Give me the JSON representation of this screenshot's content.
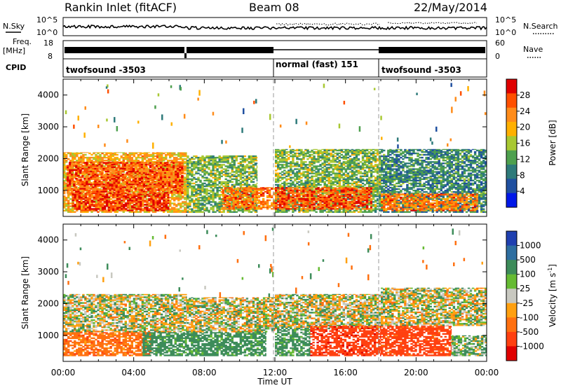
{
  "header": {
    "station": "Rankin Inlet (fitACF)",
    "beam": "Beam 08",
    "date": "22/May/2014"
  },
  "summary_panels": {
    "nsky": {
      "label": "N.Sky",
      "ticks": [
        "10^5",
        "10^0"
      ],
      "right_label": "N.Search",
      "right_ticks": [
        "10^5",
        "10^0"
      ]
    },
    "freq": {
      "label": "Freq.",
      "unit": "[MHz]",
      "ticks": [
        "18",
        "8"
      ],
      "right_label": "Nave",
      "right_ticks": [
        "60",
        "0"
      ]
    },
    "cpid": {
      "label": "CPID",
      "segments": [
        {
          "text": "twofsound -3503",
          "start": 0,
          "end": 12
        },
        {
          "text": "normal (fast) 151",
          "start": 12,
          "end": 18
        },
        {
          "text": "twofsound -3503",
          "start": 18,
          "end": 24
        }
      ]
    }
  },
  "x_axis": {
    "title": "Time UT",
    "tick_labels": [
      "00:00",
      "04:00",
      "08:00",
      "12:00",
      "16:00",
      "20:00",
      "00:00"
    ],
    "range_hours": [
      0,
      24
    ]
  },
  "power_colorbar": {
    "title": "Power [dB]",
    "labels": [
      "28",
      "24",
      "20",
      "16",
      "12",
      "8",
      "4"
    ],
    "colors": [
      "#e00000",
      "#ff5000",
      "#ff8c1a",
      "#ffb000",
      "#a8c832",
      "#4ea04e",
      "#2e7a7a",
      "#2050a0",
      "#0018e8"
    ]
  },
  "velocity_colorbar": {
    "title": "Velocity [m s",
    "title_sup": "-1",
    "title_end": "]",
    "labels": [
      "1000",
      "500",
      "100",
      "25",
      "-25",
      "-100",
      "-500",
      "-1000"
    ],
    "colors": [
      "#2040b0",
      "#2e6ea0",
      "#3d8c5a",
      "#66bb33",
      "#c8c8c0",
      "#ffa010",
      "#ff7010",
      "#ff4010",
      "#e00000"
    ]
  },
  "range_axis": {
    "title": "Slant Range [km]",
    "tick_labels": [
      "1000",
      "2000",
      "3000",
      "4000"
    ]
  },
  "chart_data": {
    "type": "heatmap",
    "x_unit": "hours UT",
    "y_unit": "km",
    "xlim": [
      0,
      24
    ],
    "ylim": [
      180,
      4500
    ],
    "mode_boundaries_hours": [
      12,
      18
    ],
    "power_regions": [
      {
        "t0": 0.0,
        "t1": 7.0,
        "r0": 300,
        "r1": 2200,
        "level_db": 20
      },
      {
        "t0": 0.2,
        "t1": 6.8,
        "r0": 900,
        "r1": 1900,
        "level_db": 26
      },
      {
        "t0": 0.5,
        "t1": 6.0,
        "r0": 350,
        "r1": 900,
        "level_db": 28
      },
      {
        "t0": 7.0,
        "t1": 11.0,
        "r0": 300,
        "r1": 2100,
        "level_db": 14
      },
      {
        "t0": 9.0,
        "t1": 12.0,
        "r0": 400,
        "r1": 1100,
        "level_db": 24
      },
      {
        "t0": 12.0,
        "t1": 18.0,
        "r0": 300,
        "r1": 2300,
        "level_db": 14
      },
      {
        "t0": 12.0,
        "t1": 17.5,
        "r0": 400,
        "r1": 1100,
        "level_db": 26
      },
      {
        "t0": 18.0,
        "t1": 24.0,
        "r0": 300,
        "r1": 2300,
        "level_db": 10
      },
      {
        "t0": 18.0,
        "t1": 23.5,
        "r0": 350,
        "r1": 900,
        "level_db": 24
      }
    ],
    "velocity_regions": [
      {
        "t0": 0.0,
        "t1": 7.0,
        "r0": 1100,
        "r1": 2300,
        "vel": 0
      },
      {
        "t0": 0.0,
        "t1": 5.0,
        "r0": 350,
        "r1": 1100,
        "vel": -200
      },
      {
        "t0": 4.5,
        "t1": 7.0,
        "r0": 350,
        "r1": 1100,
        "vel": 150
      },
      {
        "t0": 7.0,
        "t1": 12.0,
        "r0": 1100,
        "r1": 2200,
        "vel": 0
      },
      {
        "t0": 7.0,
        "t1": 11.5,
        "r0": 350,
        "r1": 1100,
        "vel": 150
      },
      {
        "t0": 12.0,
        "t1": 18.0,
        "r0": 1200,
        "r1": 2300,
        "vel": 0
      },
      {
        "t0": 12.0,
        "t1": 14.0,
        "r0": 350,
        "r1": 1200,
        "vel": 120
      },
      {
        "t0": 14.0,
        "t1": 18.0,
        "r0": 350,
        "r1": 1300,
        "vel": -600
      },
      {
        "t0": 18.0,
        "t1": 24.0,
        "r0": 1300,
        "r1": 2500,
        "vel": 0
      },
      {
        "t0": 18.0,
        "t1": 22.0,
        "r0": 350,
        "r1": 1300,
        "vel": -400
      },
      {
        "t0": 22.0,
        "t1": 24.0,
        "r0": 350,
        "r1": 1000,
        "vel": 80
      }
    ]
  }
}
